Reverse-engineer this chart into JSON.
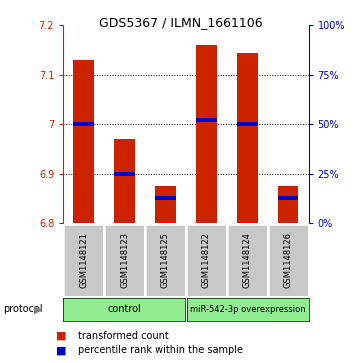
{
  "title": "GDS5367 / ILMN_1661106",
  "samples": [
    "GSM1148121",
    "GSM1148123",
    "GSM1148125",
    "GSM1148122",
    "GSM1148124",
    "GSM1148126"
  ],
  "transformed_count": [
    7.13,
    6.97,
    6.875,
    7.16,
    7.145,
    6.875
  ],
  "percentile_rank": [
    50,
    25,
    13,
    52,
    50,
    13
  ],
  "ylim": [
    6.8,
    7.2
  ],
  "yticks_left": [
    6.8,
    6.9,
    7.0,
    7.1,
    7.2
  ],
  "yticks_right": [
    0,
    25,
    50,
    75,
    100
  ],
  "bar_color": "#CC2200",
  "blue_color": "#0000CC",
  "label_box_color": "#C8C8C8",
  "protocol_color": "#90EE90",
  "legend_red_label": "transformed count",
  "legend_blue_label": "percentile rank within the sample",
  "bar_width": 0.5,
  "title_fontsize": 9,
  "tick_fontsize": 7,
  "sample_fontsize": 6,
  "prot_fontsize": 7,
  "legend_fontsize": 7
}
